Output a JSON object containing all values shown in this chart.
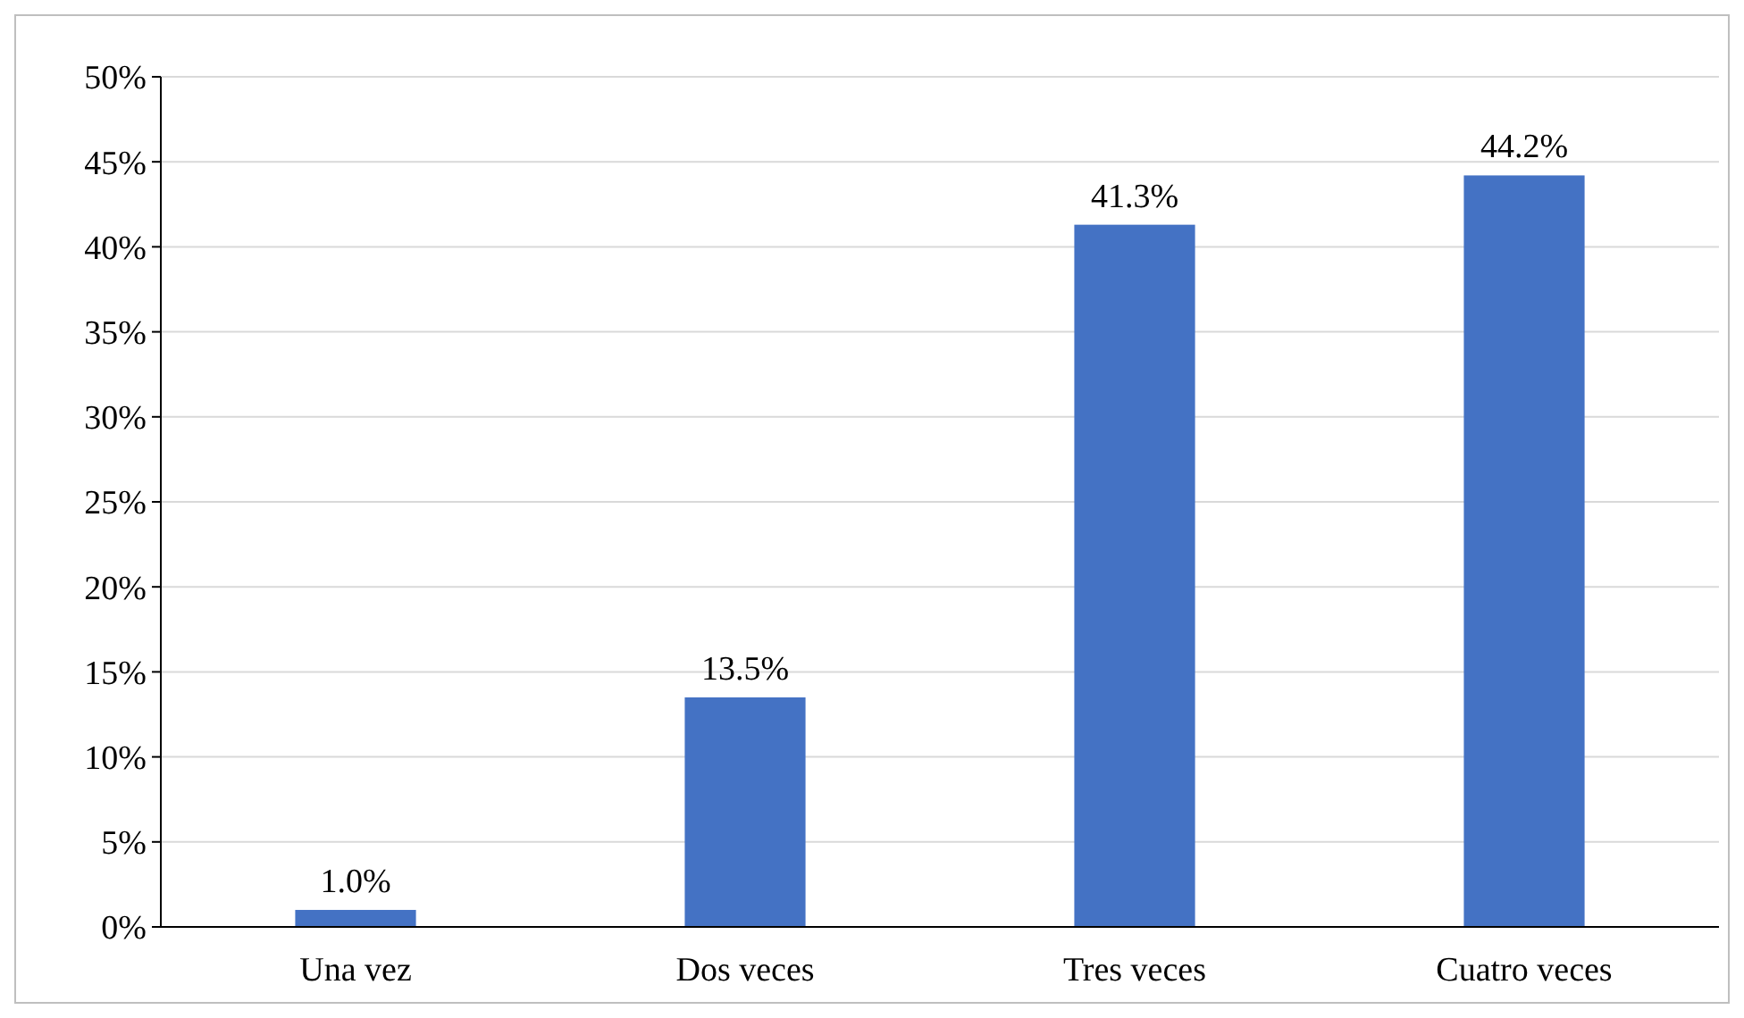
{
  "chart_data": {
    "type": "bar",
    "categories": [
      "Una vez",
      "Dos veces",
      "Tres veces",
      "Cuatro veces"
    ],
    "values": [
      1.0,
      13.5,
      41.3,
      44.2
    ],
    "color": "#4472c4",
    "value_labels": [
      "1.0%",
      "13.5%",
      "41.3%",
      "44.2%"
    ],
    "ylim": [
      0,
      50
    ],
    "yticks": [
      {
        "value": 0,
        "label": "0%"
      },
      {
        "value": 5,
        "label": "5%"
      },
      {
        "value": 10,
        "label": "10%"
      },
      {
        "value": 15,
        "label": "15%"
      },
      {
        "value": 20,
        "label": "20%"
      },
      {
        "value": 25,
        "label": "25%"
      },
      {
        "value": 30,
        "label": "30%"
      },
      {
        "value": 35,
        "label": "35%"
      },
      {
        "value": 40,
        "label": "40%"
      },
      {
        "value": 45,
        "label": "45%"
      },
      {
        "value": 50,
        "label": "50%"
      }
    ],
    "grid": "y"
  }
}
